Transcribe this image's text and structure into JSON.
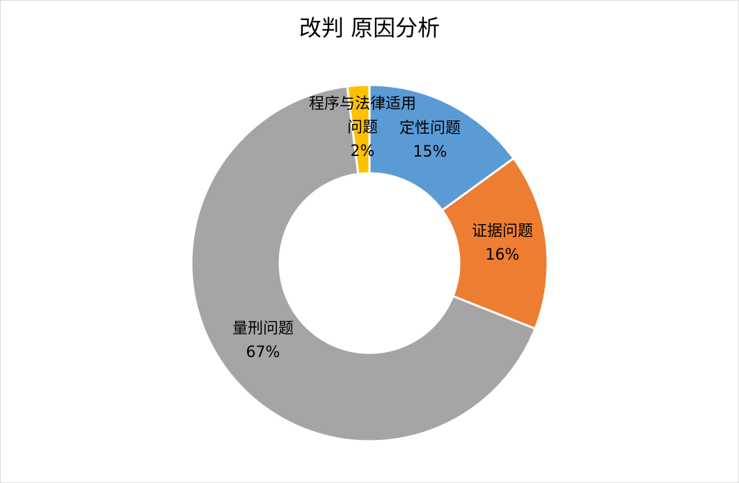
{
  "chart_data": {
    "type": "pie",
    "title": "改判 原因分析",
    "donut": true,
    "slices": [
      {
        "name": "定性问题",
        "value": 15,
        "label": "15%",
        "color": "#5b9bd5"
      },
      {
        "name": "证据问题",
        "value": 16,
        "label": "16%",
        "color": "#ed7d31"
      },
      {
        "name": "量刑问题",
        "value": 67,
        "label": "67%",
        "color": "#a5a5a5"
      },
      {
        "name": "程序与法律适用问题",
        "name_lines": [
          "程序与法律适用",
          "问题"
        ],
        "value": 2,
        "label": "2%",
        "color": "#ffc000"
      }
    ]
  }
}
